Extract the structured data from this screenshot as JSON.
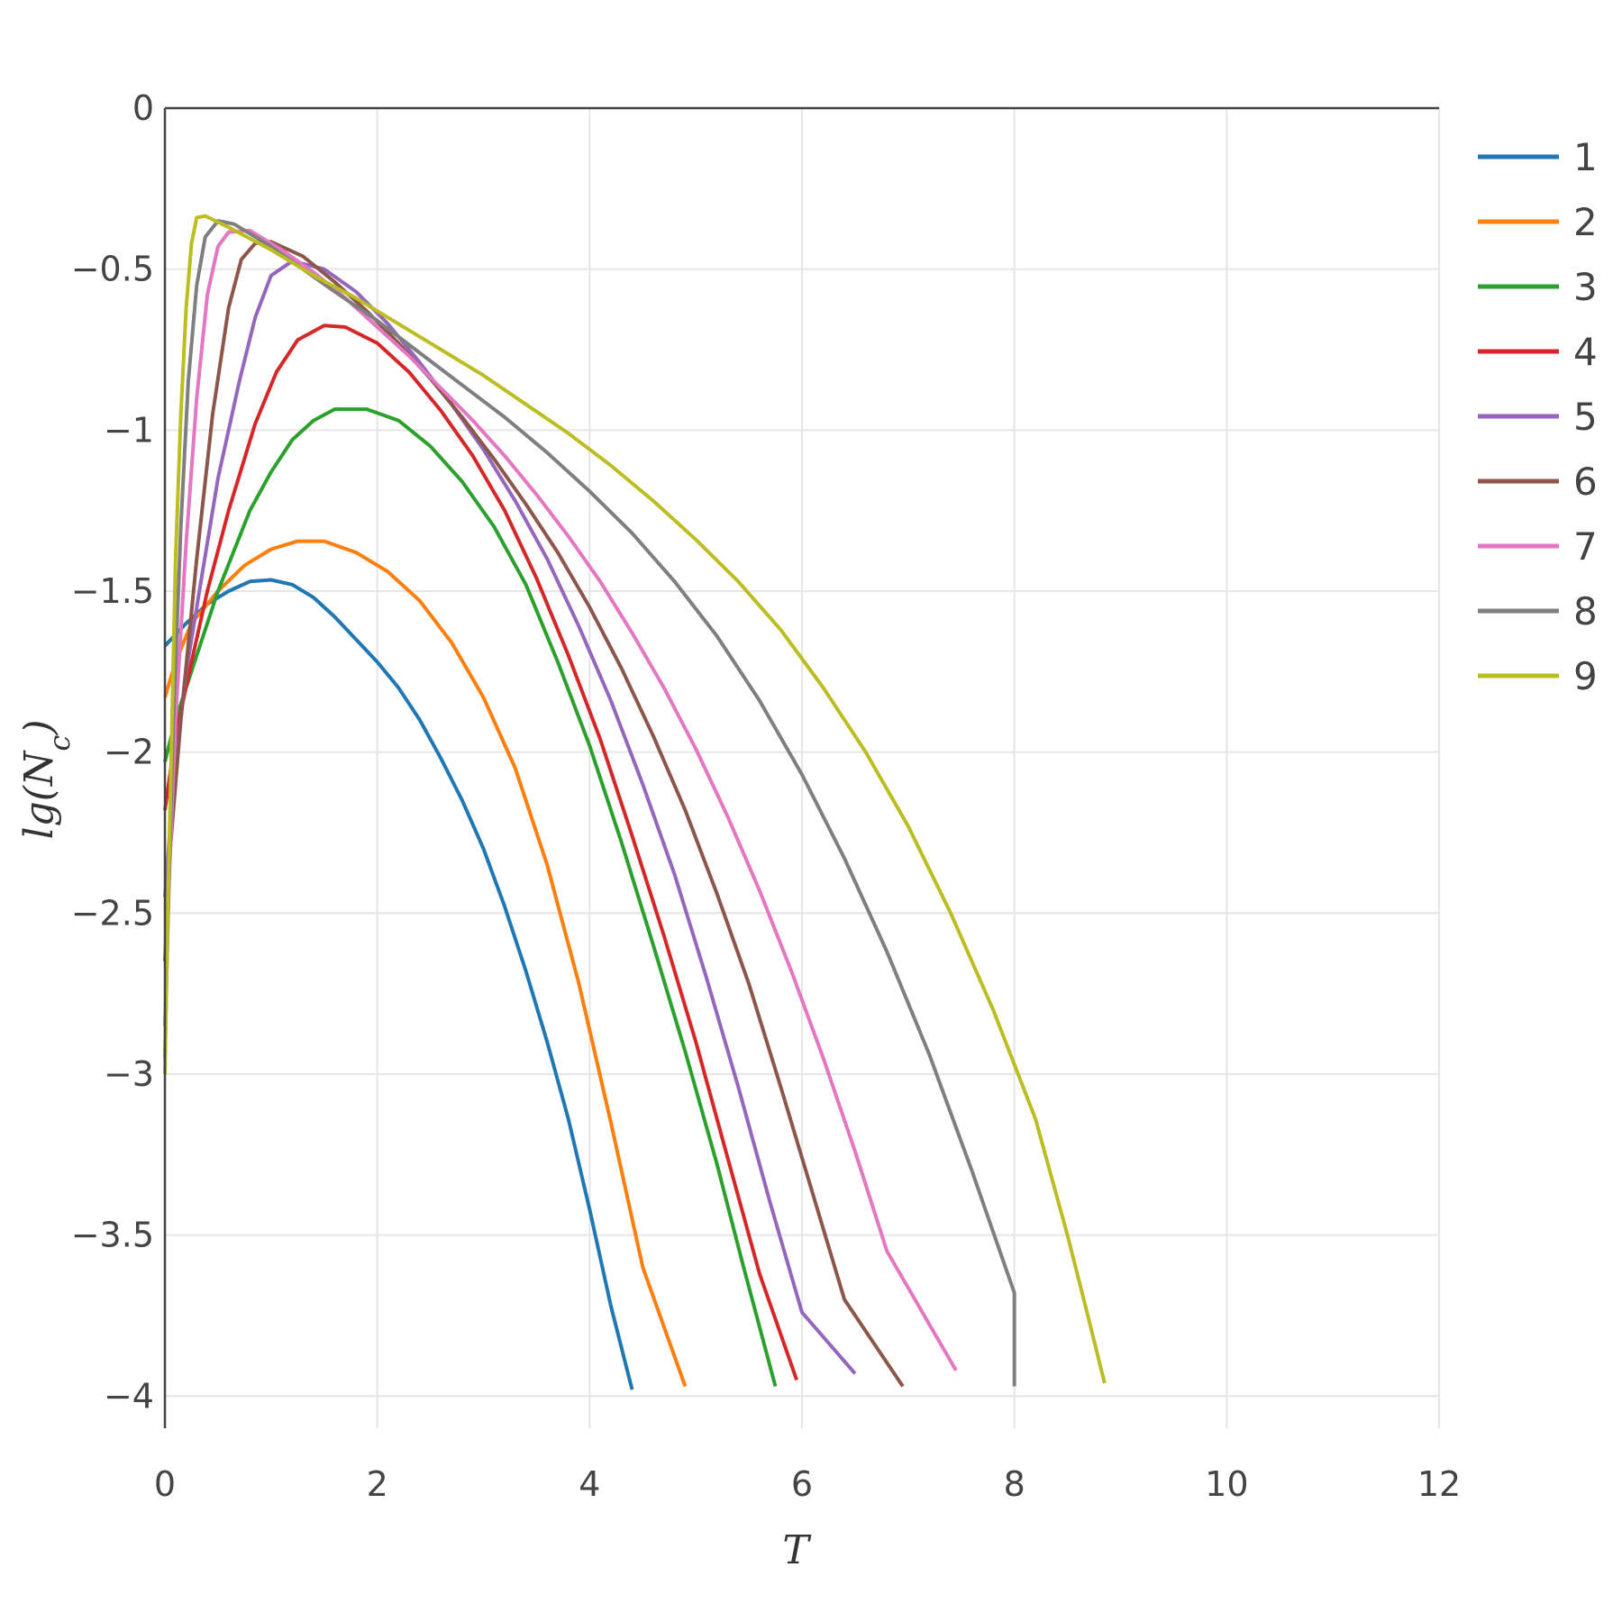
{
  "chart_data": {
    "type": "line",
    "xlabel": "T",
    "ylabel": "lg(N",
    "ylabel_sub": "c",
    "ylabel_close": ")",
    "xlim": [
      0,
      12
    ],
    "ylim": [
      -4.1,
      0
    ],
    "x_ticks": [
      0,
      2,
      4,
      6,
      8,
      10,
      12
    ],
    "y_ticks": [
      0,
      -0.5,
      -1,
      -1.5,
      -2,
      -2.5,
      -3,
      -3.5,
      -4
    ],
    "x_tick_labels": [
      "0",
      "2",
      "4",
      "6",
      "8",
      "10",
      "12"
    ],
    "y_tick_labels": [
      "0",
      "−0.5",
      "−1",
      "−1.5",
      "−2",
      "−2.5",
      "−3",
      "−3.5",
      "−4"
    ],
    "grid": true,
    "legend_position": "top-right",
    "series": [
      {
        "name": "1",
        "color": "#1f77b4",
        "points": [
          [
            0,
            -1.67
          ],
          [
            0.2,
            -1.6
          ],
          [
            0.4,
            -1.54
          ],
          [
            0.6,
            -1.5
          ],
          [
            0.8,
            -1.47
          ],
          [
            1.0,
            -1.465
          ],
          [
            1.2,
            -1.48
          ],
          [
            1.4,
            -1.52
          ],
          [
            1.6,
            -1.58
          ],
          [
            1.8,
            -1.65
          ],
          [
            2.0,
            -1.72
          ],
          [
            2.2,
            -1.8
          ],
          [
            2.4,
            -1.9
          ],
          [
            2.6,
            -2.02
          ],
          [
            2.8,
            -2.15
          ],
          [
            3.0,
            -2.3
          ],
          [
            3.2,
            -2.48
          ],
          [
            3.4,
            -2.68
          ],
          [
            3.6,
            -2.9
          ],
          [
            3.8,
            -3.14
          ],
          [
            4.0,
            -3.42
          ],
          [
            4.2,
            -3.72
          ],
          [
            4.4,
            -3.98
          ]
        ]
      },
      {
        "name": "2",
        "color": "#ff7f0e",
        "points": [
          [
            0,
            -1.83
          ],
          [
            0.1,
            -1.72
          ],
          [
            0.25,
            -1.6
          ],
          [
            0.5,
            -1.5
          ],
          [
            0.75,
            -1.42
          ],
          [
            1.0,
            -1.37
          ],
          [
            1.25,
            -1.345
          ],
          [
            1.5,
            -1.345
          ],
          [
            1.8,
            -1.38
          ],
          [
            2.1,
            -1.44
          ],
          [
            2.4,
            -1.53
          ],
          [
            2.7,
            -1.66
          ],
          [
            3.0,
            -1.83
          ],
          [
            3.3,
            -2.05
          ],
          [
            3.6,
            -2.35
          ],
          [
            3.9,
            -2.72
          ],
          [
            4.2,
            -3.15
          ],
          [
            4.5,
            -3.6
          ],
          [
            4.9,
            -3.97
          ]
        ]
      },
      {
        "name": "3",
        "color": "#2ca02c",
        "points": [
          [
            0,
            -2.03
          ],
          [
            0.1,
            -1.9
          ],
          [
            0.3,
            -1.7
          ],
          [
            0.5,
            -1.5
          ],
          [
            0.8,
            -1.25
          ],
          [
            1.0,
            -1.13
          ],
          [
            1.2,
            -1.03
          ],
          [
            1.4,
            -0.97
          ],
          [
            1.6,
            -0.935
          ],
          [
            1.9,
            -0.935
          ],
          [
            2.2,
            -0.97
          ],
          [
            2.5,
            -1.05
          ],
          [
            2.8,
            -1.16
          ],
          [
            3.1,
            -1.3
          ],
          [
            3.4,
            -1.48
          ],
          [
            3.7,
            -1.72
          ],
          [
            4.0,
            -1.98
          ],
          [
            4.3,
            -2.28
          ],
          [
            4.6,
            -2.6
          ],
          [
            4.9,
            -2.93
          ],
          [
            5.2,
            -3.28
          ],
          [
            5.45,
            -3.6
          ],
          [
            5.75,
            -3.97
          ]
        ]
      },
      {
        "name": "4",
        "color": "#d62728",
        "points": [
          [
            0,
            -2.18
          ],
          [
            0.1,
            -1.95
          ],
          [
            0.25,
            -1.72
          ],
          [
            0.4,
            -1.5
          ],
          [
            0.6,
            -1.25
          ],
          [
            0.85,
            -0.98
          ],
          [
            1.05,
            -0.82
          ],
          [
            1.25,
            -0.72
          ],
          [
            1.5,
            -0.675
          ],
          [
            1.7,
            -0.68
          ],
          [
            2.0,
            -0.73
          ],
          [
            2.3,
            -0.82
          ],
          [
            2.6,
            -0.94
          ],
          [
            2.9,
            -1.08
          ],
          [
            3.2,
            -1.25
          ],
          [
            3.5,
            -1.46
          ],
          [
            3.8,
            -1.7
          ],
          [
            4.1,
            -1.96
          ],
          [
            4.4,
            -2.26
          ],
          [
            4.7,
            -2.57
          ],
          [
            5.0,
            -2.9
          ],
          [
            5.3,
            -3.26
          ],
          [
            5.6,
            -3.62
          ],
          [
            5.95,
            -3.95
          ]
        ]
      },
      {
        "name": "5",
        "color": "#9467bd",
        "points": [
          [
            0,
            -2.45
          ],
          [
            0.08,
            -2.1
          ],
          [
            0.2,
            -1.75
          ],
          [
            0.35,
            -1.45
          ],
          [
            0.5,
            -1.15
          ],
          [
            0.7,
            -0.85
          ],
          [
            0.85,
            -0.65
          ],
          [
            1.0,
            -0.52
          ],
          [
            1.2,
            -0.475
          ],
          [
            1.5,
            -0.5
          ],
          [
            1.8,
            -0.57
          ],
          [
            2.1,
            -0.67
          ],
          [
            2.4,
            -0.79
          ],
          [
            2.7,
            -0.92
          ],
          [
            3.0,
            -1.06
          ],
          [
            3.3,
            -1.22
          ],
          [
            3.6,
            -1.4
          ],
          [
            3.9,
            -1.61
          ],
          [
            4.2,
            -1.84
          ],
          [
            4.5,
            -2.1
          ],
          [
            4.8,
            -2.38
          ],
          [
            5.1,
            -2.7
          ],
          [
            5.4,
            -3.04
          ],
          [
            5.7,
            -3.4
          ],
          [
            6.0,
            -3.74
          ],
          [
            6.5,
            -3.93
          ]
        ]
      },
      {
        "name": "6",
        "color": "#8c564b",
        "points": [
          [
            0,
            -2.65
          ],
          [
            0.05,
            -2.3
          ],
          [
            0.15,
            -1.9
          ],
          [
            0.3,
            -1.4
          ],
          [
            0.45,
            -0.95
          ],
          [
            0.6,
            -0.62
          ],
          [
            0.72,
            -0.47
          ],
          [
            0.85,
            -0.42
          ],
          [
            1.0,
            -0.415
          ],
          [
            1.3,
            -0.46
          ],
          [
            1.6,
            -0.54
          ],
          [
            1.9,
            -0.63
          ],
          [
            2.2,
            -0.73
          ],
          [
            2.5,
            -0.84
          ],
          [
            2.8,
            -0.96
          ],
          [
            3.1,
            -1.09
          ],
          [
            3.4,
            -1.23
          ],
          [
            3.7,
            -1.38
          ],
          [
            4.0,
            -1.55
          ],
          [
            4.3,
            -1.74
          ],
          [
            4.6,
            -1.95
          ],
          [
            4.9,
            -2.18
          ],
          [
            5.2,
            -2.44
          ],
          [
            5.5,
            -2.72
          ],
          [
            5.8,
            -3.04
          ],
          [
            6.1,
            -3.37
          ],
          [
            6.4,
            -3.7
          ],
          [
            6.95,
            -3.97
          ]
        ]
      },
      {
        "name": "7",
        "color": "#e377c2",
        "points": [
          [
            0,
            -2.85
          ],
          [
            0.04,
            -2.4
          ],
          [
            0.1,
            -1.9
          ],
          [
            0.2,
            -1.35
          ],
          [
            0.3,
            -0.9
          ],
          [
            0.4,
            -0.58
          ],
          [
            0.5,
            -0.43
          ],
          [
            0.6,
            -0.385
          ],
          [
            0.8,
            -0.38
          ],
          [
            1.1,
            -0.44
          ],
          [
            1.4,
            -0.51
          ],
          [
            1.7,
            -0.59
          ],
          [
            2.0,
            -0.68
          ],
          [
            2.3,
            -0.77
          ],
          [
            2.6,
            -0.87
          ],
          [
            2.9,
            -0.97
          ],
          [
            3.2,
            -1.08
          ],
          [
            3.5,
            -1.2
          ],
          [
            3.8,
            -1.33
          ],
          [
            4.1,
            -1.47
          ],
          [
            4.4,
            -1.63
          ],
          [
            4.7,
            -1.8
          ],
          [
            5.0,
            -1.99
          ],
          [
            5.3,
            -2.2
          ],
          [
            5.6,
            -2.43
          ],
          [
            5.9,
            -2.68
          ],
          [
            6.2,
            -2.95
          ],
          [
            6.5,
            -3.24
          ],
          [
            6.8,
            -3.55
          ],
          [
            7.45,
            -3.92
          ]
        ]
      },
      {
        "name": "8",
        "color": "#7f7f7f",
        "points": [
          [
            0,
            -2.95
          ],
          [
            0.03,
            -2.5
          ],
          [
            0.08,
            -1.9
          ],
          [
            0.15,
            -1.3
          ],
          [
            0.22,
            -0.85
          ],
          [
            0.3,
            -0.55
          ],
          [
            0.38,
            -0.4
          ],
          [
            0.5,
            -0.35
          ],
          [
            0.65,
            -0.36
          ],
          [
            1.0,
            -0.43
          ],
          [
            1.3,
            -0.5
          ],
          [
            1.6,
            -0.57
          ],
          [
            2.0,
            -0.66
          ],
          [
            2.4,
            -0.76
          ],
          [
            2.8,
            -0.86
          ],
          [
            3.2,
            -0.96
          ],
          [
            3.6,
            -1.07
          ],
          [
            4.0,
            -1.19
          ],
          [
            4.4,
            -1.32
          ],
          [
            4.8,
            -1.47
          ],
          [
            5.2,
            -1.64
          ],
          [
            5.6,
            -1.84
          ],
          [
            6.0,
            -2.07
          ],
          [
            6.4,
            -2.33
          ],
          [
            6.8,
            -2.62
          ],
          [
            7.2,
            -2.94
          ],
          [
            7.6,
            -3.3
          ],
          [
            8.0,
            -3.68
          ],
          [
            8.0,
            -3.97
          ]
        ]
      },
      {
        "name": "9",
        "color": "#bcbd22",
        "points": [
          [
            0,
            -3.0
          ],
          [
            0.02,
            -2.6
          ],
          [
            0.06,
            -2.0
          ],
          [
            0.1,
            -1.4
          ],
          [
            0.15,
            -0.95
          ],
          [
            0.2,
            -0.62
          ],
          [
            0.25,
            -0.42
          ],
          [
            0.3,
            -0.34
          ],
          [
            0.38,
            -0.335
          ],
          [
            0.6,
            -0.37
          ],
          [
            1.0,
            -0.44
          ],
          [
            1.4,
            -0.52
          ],
          [
            1.8,
            -0.59
          ],
          [
            2.2,
            -0.67
          ],
          [
            2.6,
            -0.75
          ],
          [
            3.0,
            -0.83
          ],
          [
            3.4,
            -0.92
          ],
          [
            3.8,
            -1.01
          ],
          [
            4.2,
            -1.11
          ],
          [
            4.6,
            -1.22
          ],
          [
            5.0,
            -1.34
          ],
          [
            5.4,
            -1.47
          ],
          [
            5.8,
            -1.62
          ],
          [
            6.2,
            -1.8
          ],
          [
            6.6,
            -2.0
          ],
          [
            7.0,
            -2.23
          ],
          [
            7.4,
            -2.5
          ],
          [
            7.8,
            -2.8
          ],
          [
            8.2,
            -3.14
          ],
          [
            8.5,
            -3.5
          ],
          [
            8.7,
            -3.76
          ],
          [
            8.85,
            -3.96
          ]
        ]
      }
    ]
  }
}
